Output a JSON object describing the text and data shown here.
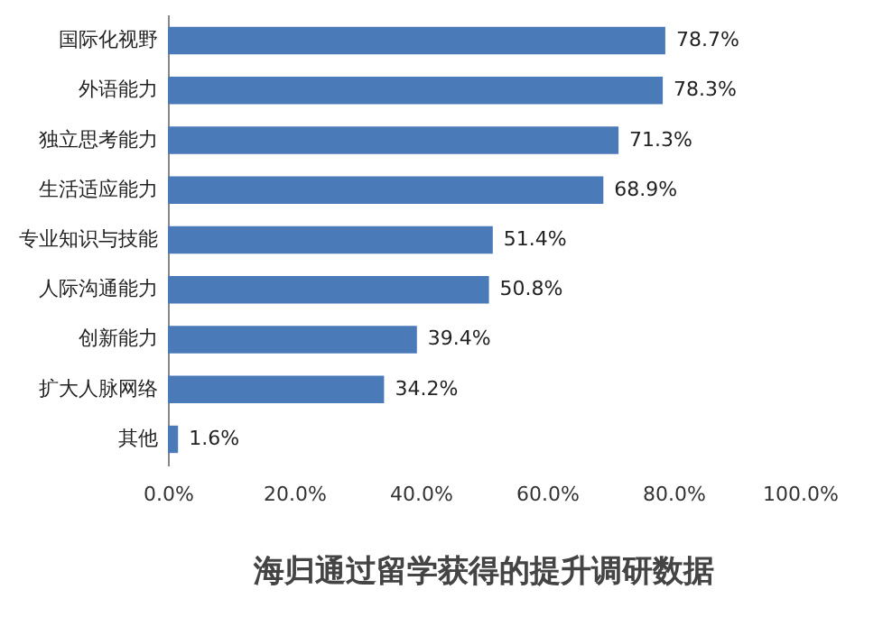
{
  "chart_data": {
    "type": "bar",
    "orientation": "horizontal",
    "title": "海归通过留学获得的提升调研数据",
    "categories": [
      "国际化视野",
      "外语能力",
      "独立思考能力",
      "生活适应能力",
      "专业知识与技能",
      "人际沟通能力",
      "创新能力",
      "扩大人脉网络",
      "其他"
    ],
    "values": [
      78.7,
      78.3,
      71.3,
      68.9,
      51.4,
      50.8,
      39.4,
      34.2,
      1.6
    ],
    "value_labels": [
      "78.7%",
      "78.3%",
      "71.3%",
      "68.9%",
      "51.4%",
      "50.8%",
      "39.4%",
      "34.2%",
      "1.6%"
    ],
    "color": "#4a7ab8",
    "xlim": [
      0,
      100
    ],
    "xticks": [
      {
        "value": 0,
        "label": "0.0%"
      },
      {
        "value": 20,
        "label": "20.0%"
      },
      {
        "value": 40,
        "label": "40.0%"
      },
      {
        "value": 60,
        "label": "60.0%"
      },
      {
        "value": 80,
        "label": "80.0%"
      },
      {
        "value": 100,
        "label": "100.0%"
      }
    ],
    "grid": false
  }
}
